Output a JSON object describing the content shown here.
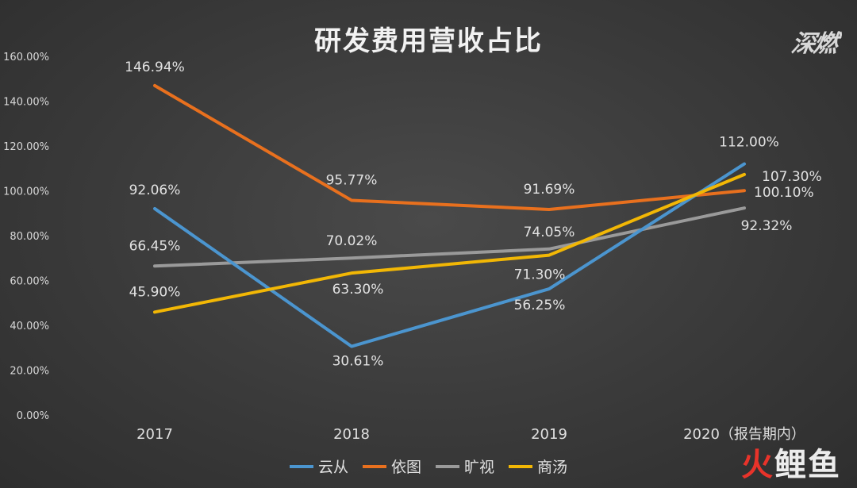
{
  "logos": {
    "top": "深燃",
    "bottom_1": "火",
    "bottom_2": "鲤鱼"
  },
  "chart_data": {
    "type": "line",
    "title": "研发费用营收占比",
    "categories": [
      "2017",
      "2018",
      "2019",
      "2020（报告期内）"
    ],
    "ylim": [
      0,
      160
    ],
    "yticks": [
      "0.00%",
      "20.00%",
      "40.00%",
      "60.00%",
      "80.00%",
      "100.00%",
      "120.00%",
      "140.00%",
      "160.00%"
    ],
    "grid": false,
    "legend_position": "bottom",
    "series": [
      {
        "name": "云从",
        "color": "#4b95cf",
        "values": [
          92.06,
          30.61,
          56.25,
          112.0
        ],
        "labels": [
          "92.06%",
          "30.61%",
          "56.25%",
          "112.00%"
        ]
      },
      {
        "name": "依图",
        "color": "#e8701e",
        "values": [
          146.94,
          95.77,
          91.69,
          100.1
        ],
        "labels": [
          "146.94%",
          "95.77%",
          "91.69%",
          "100.10%"
        ]
      },
      {
        "name": "旷视",
        "color": "#9a9a9a",
        "values": [
          66.45,
          70.02,
          74.05,
          92.32
        ],
        "labels": [
          "66.45%",
          "70.02%",
          "74.05%",
          "92.32%"
        ]
      },
      {
        "name": "商汤",
        "color": "#f2b705",
        "values": [
          45.9,
          63.3,
          71.3,
          107.3
        ],
        "labels": [
          "45.90%",
          "63.30%",
          "71.30%",
          "107.30%"
        ]
      }
    ]
  }
}
